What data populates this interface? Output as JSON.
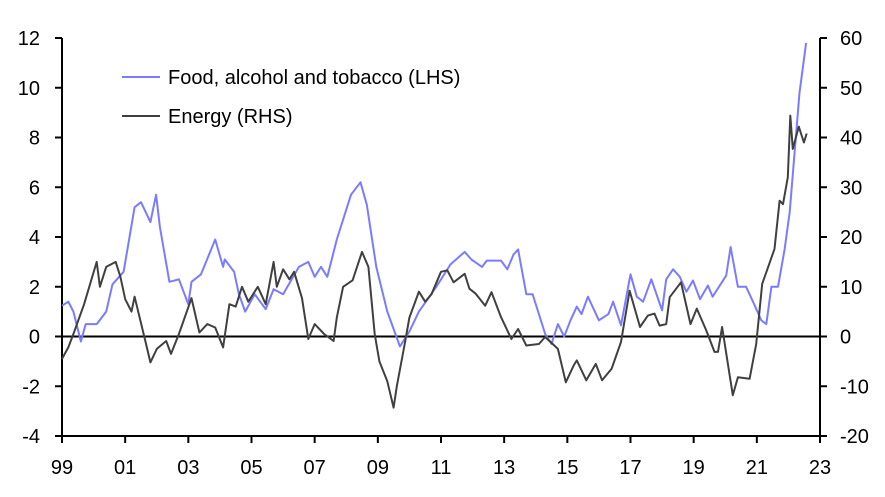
{
  "chart_data": {
    "type": "line",
    "title": "",
    "xlabel": "",
    "ylabel": "",
    "xlim": [
      1999,
      2023
    ],
    "x_ticks": [
      "99",
      "01",
      "03",
      "05",
      "07",
      "09",
      "11",
      "13",
      "15",
      "17",
      "19",
      "21",
      "23"
    ],
    "ylim_left": [
      -4,
      12
    ],
    "y_ticks_left": [
      "-4",
      "-2",
      "0",
      "2",
      "4",
      "6",
      "8",
      "10",
      "12"
    ],
    "ylim_right": [
      -20,
      60
    ],
    "y_ticks_right": [
      "-20",
      "-10",
      "0",
      "10",
      "20",
      "30",
      "40",
      "50",
      "60"
    ],
    "grid": false,
    "legend_position": "top-left",
    "colors": {
      "food": "#7b7bff",
      "energy": "#404040"
    },
    "series": [
      {
        "name": "Food, alcohol and tobacco (LHS)",
        "axis": "left",
        "points": [
          [
            1999.0,
            1.24
          ],
          [
            1999.2,
            1.4
          ],
          [
            1999.36,
            1.0
          ],
          [
            1999.6,
            -0.2
          ],
          [
            1999.75,
            0.5
          ],
          [
            2000.1,
            0.5
          ],
          [
            2000.4,
            1.0
          ],
          [
            2000.6,
            2.1
          ],
          [
            2000.95,
            2.6
          ],
          [
            2001.3,
            5.2
          ],
          [
            2001.5,
            5.4
          ],
          [
            2001.8,
            4.6
          ],
          [
            2001.98,
            5.7
          ],
          [
            2002.1,
            4.4
          ],
          [
            2002.4,
            2.2
          ],
          [
            2002.7,
            2.3
          ],
          [
            2003.0,
            1.3
          ],
          [
            2003.1,
            2.2
          ],
          [
            2003.4,
            2.5
          ],
          [
            2003.85,
            3.9
          ],
          [
            2004.1,
            2.8
          ],
          [
            2004.15,
            3.1
          ],
          [
            2004.45,
            2.6
          ],
          [
            2004.6,
            1.7
          ],
          [
            2004.8,
            1.0
          ],
          [
            2005.1,
            1.7
          ],
          [
            2005.45,
            1.1
          ],
          [
            2005.7,
            1.9
          ],
          [
            2006.0,
            1.7
          ],
          [
            2006.5,
            2.8
          ],
          [
            2006.8,
            3.0
          ],
          [
            2007.0,
            2.4
          ],
          [
            2007.2,
            2.8
          ],
          [
            2007.4,
            2.4
          ],
          [
            2007.7,
            3.9
          ],
          [
            2008.15,
            5.7
          ],
          [
            2008.45,
            6.2
          ],
          [
            2008.65,
            5.3
          ],
          [
            2008.95,
            2.8
          ],
          [
            2009.3,
            1.0
          ],
          [
            2009.7,
            -0.4
          ],
          [
            2010.0,
            0.2
          ],
          [
            2010.3,
            1.0
          ],
          [
            2010.85,
            2.0
          ],
          [
            2011.3,
            2.9
          ],
          [
            2011.75,
            3.4
          ],
          [
            2011.96,
            3.1
          ],
          [
            2012.3,
            2.8
          ],
          [
            2012.45,
            3.05
          ],
          [
            2012.9,
            3.05
          ],
          [
            2013.1,
            2.7
          ],
          [
            2013.3,
            3.3
          ],
          [
            2013.44,
            3.5
          ],
          [
            2013.7,
            1.7
          ],
          [
            2013.9,
            1.7
          ],
          [
            2014.3,
            0.1
          ],
          [
            2014.5,
            -0.3
          ],
          [
            2014.7,
            0.5
          ],
          [
            2014.9,
            0.0
          ],
          [
            2015.1,
            0.65
          ],
          [
            2015.3,
            1.2
          ],
          [
            2015.45,
            0.9
          ],
          [
            2015.65,
            1.6
          ],
          [
            2016.0,
            0.65
          ],
          [
            2016.3,
            0.9
          ],
          [
            2016.45,
            1.4
          ],
          [
            2016.7,
            0.45
          ],
          [
            2017.0,
            2.5
          ],
          [
            2017.2,
            1.6
          ],
          [
            2017.4,
            1.4
          ],
          [
            2017.66,
            2.3
          ],
          [
            2018.0,
            1.05
          ],
          [
            2018.13,
            2.3
          ],
          [
            2018.35,
            2.7
          ],
          [
            2018.56,
            2.4
          ],
          [
            2018.77,
            1.8
          ],
          [
            2018.98,
            2.25
          ],
          [
            2019.2,
            1.5
          ],
          [
            2019.45,
            2.05
          ],
          [
            2019.6,
            1.6
          ],
          [
            2020.03,
            2.45
          ],
          [
            2020.17,
            3.6
          ],
          [
            2020.4,
            2.0
          ],
          [
            2020.66,
            2.0
          ],
          [
            2020.88,
            1.4
          ],
          [
            2021.14,
            0.65
          ],
          [
            2021.3,
            0.5
          ],
          [
            2021.46,
            2.0
          ],
          [
            2021.67,
            2.0
          ],
          [
            2021.88,
            3.5
          ],
          [
            2022.04,
            5.0
          ],
          [
            2022.35,
            9.8
          ],
          [
            2022.56,
            11.8
          ]
        ]
      },
      {
        "name": "Energy (RHS)",
        "axis": "right",
        "points": [
          [
            1999.0,
            -4.5
          ],
          [
            1999.2,
            -2.2
          ],
          [
            1999.36,
            0.5
          ],
          [
            1999.7,
            6.5
          ],
          [
            2000.1,
            15
          ],
          [
            2000.2,
            10
          ],
          [
            2000.4,
            14
          ],
          [
            2000.7,
            15
          ],
          [
            2000.85,
            12
          ],
          [
            2001.0,
            7.5
          ],
          [
            2001.2,
            5
          ],
          [
            2001.3,
            8
          ],
          [
            2001.65,
            -1.2
          ],
          [
            2001.8,
            -5.2
          ],
          [
            2002.0,
            -2.5
          ],
          [
            2002.3,
            -0.9
          ],
          [
            2002.45,
            -3.5
          ],
          [
            2002.7,
            0.5
          ],
          [
            2003.1,
            7.7
          ],
          [
            2003.35,
            0.8
          ],
          [
            2003.6,
            2.5
          ],
          [
            2003.85,
            1.8
          ],
          [
            2004.1,
            -2.2
          ],
          [
            2004.3,
            6.5
          ],
          [
            2004.5,
            6
          ],
          [
            2004.7,
            10
          ],
          [
            2004.9,
            7
          ],
          [
            2005.2,
            10
          ],
          [
            2005.45,
            6.5
          ],
          [
            2005.7,
            15
          ],
          [
            2005.8,
            10
          ],
          [
            2006.0,
            13.5
          ],
          [
            2006.2,
            11.5
          ],
          [
            2006.35,
            13
          ],
          [
            2006.6,
            7.7
          ],
          [
            2006.8,
            -0.5
          ],
          [
            2007.0,
            2.5
          ],
          [
            2007.3,
            0.5
          ],
          [
            2007.6,
            -0.9
          ],
          [
            2007.7,
            3.8
          ],
          [
            2007.9,
            10
          ],
          [
            2008.2,
            11.3
          ],
          [
            2008.5,
            17
          ],
          [
            2008.7,
            14
          ],
          [
            2008.9,
            0.5
          ],
          [
            2009.05,
            -5
          ],
          [
            2009.3,
            -9
          ],
          [
            2009.5,
            -14.3
          ],
          [
            2009.6,
            -10
          ],
          [
            2009.85,
            -1.5
          ],
          [
            2010.0,
            3.8
          ],
          [
            2010.3,
            9
          ],
          [
            2010.5,
            7
          ],
          [
            2010.7,
            8.5
          ],
          [
            2011.0,
            13
          ],
          [
            2011.2,
            13.3
          ],
          [
            2011.4,
            10.9
          ],
          [
            2011.75,
            12.6
          ],
          [
            2011.9,
            9.6
          ],
          [
            2012.1,
            8.6
          ],
          [
            2012.4,
            6.2
          ],
          [
            2012.6,
            8.9
          ],
          [
            2012.9,
            3.9
          ],
          [
            2013.23,
            -0.5
          ],
          [
            2013.44,
            1.5
          ],
          [
            2013.7,
            -1.8
          ],
          [
            2014.1,
            -1.5
          ],
          [
            2014.3,
            -0.1
          ],
          [
            2014.7,
            -2.5
          ],
          [
            2014.95,
            -9.2
          ],
          [
            2015.2,
            -5.8
          ],
          [
            2015.3,
            -4.8
          ],
          [
            2015.6,
            -8.8
          ],
          [
            2015.9,
            -5.5
          ],
          [
            2016.1,
            -8.8
          ],
          [
            2016.4,
            -6.5
          ],
          [
            2016.7,
            -1.1
          ],
          [
            2016.97,
            9.2
          ],
          [
            2017.3,
            1.9
          ],
          [
            2017.55,
            4.2
          ],
          [
            2017.76,
            4.6
          ],
          [
            2017.92,
            2.2
          ],
          [
            2018.13,
            2.5
          ],
          [
            2018.24,
            7.9
          ],
          [
            2018.6,
            10.9
          ],
          [
            2018.9,
            2.5
          ],
          [
            2019.1,
            5.6
          ],
          [
            2019.4,
            1.2
          ],
          [
            2019.66,
            -3.1
          ],
          [
            2019.77,
            -3.1
          ],
          [
            2019.9,
            1.9
          ],
          [
            2020.24,
            -11.8
          ],
          [
            2020.4,
            -8.2
          ],
          [
            2020.77,
            -8.5
          ],
          [
            2020.98,
            -1.5
          ],
          [
            2021.17,
            10.6
          ],
          [
            2021.3,
            12.9
          ],
          [
            2021.56,
            17.6
          ],
          [
            2021.72,
            27.3
          ],
          [
            2021.83,
            26.6
          ],
          [
            2021.98,
            32
          ],
          [
            2022.06,
            44.4
          ],
          [
            2022.14,
            37.7
          ],
          [
            2022.33,
            42.2
          ],
          [
            2022.49,
            39
          ],
          [
            2022.58,
            40.8
          ]
        ]
      }
    ]
  }
}
